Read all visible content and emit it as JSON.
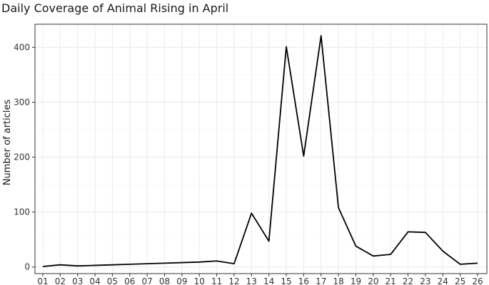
{
  "chart_data": {
    "type": "line",
    "title": "Daily Coverage of Animal Rising in April",
    "xlabel": "",
    "ylabel": "Number of articles",
    "x": [
      "01",
      "02",
      "03",
      "04",
      "05",
      "06",
      "07",
      "08",
      "09",
      "10",
      "11",
      "12",
      "13",
      "14",
      "15",
      "16",
      "17",
      "18",
      "19",
      "20",
      "21",
      "22",
      "23",
      "24",
      "25",
      "26"
    ],
    "series": [
      {
        "name": "",
        "values": [
          1,
          4,
          2,
          3,
          4,
          5,
          6,
          7,
          8,
          9,
          11,
          6,
          98,
          47,
          401,
          202,
          421,
          108,
          38,
          20,
          23,
          64,
          63,
          29,
          5,
          7
        ]
      }
    ],
    "ylim": [
      -12,
      442
    ],
    "yticks": [
      0,
      100,
      200,
      300,
      400
    ],
    "grid": true,
    "colors": {
      "line": "#000000",
      "grid": "#ebebeb",
      "border": "#333333"
    }
  }
}
